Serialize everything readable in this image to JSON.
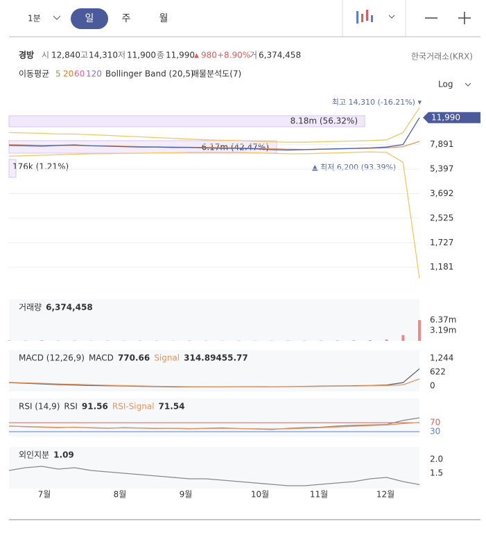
{
  "toolbar": {
    "interval": "1분",
    "tabs": [
      "일",
      "주",
      "월"
    ]
  },
  "quote": {
    "name": "경방",
    "open_label": "시",
    "open": "12,840",
    "high_label": "고",
    "high": "14,310",
    "low_label": "저",
    "low": "11,900",
    "close_label": "종",
    "close": "11,990",
    "change_sign": "▲",
    "change": "980",
    "change_pct": "+8.90%",
    "volume_label": "거",
    "volume": "6,374,458",
    "exchange": "한국거래소(KRX)"
  },
  "indicators": {
    "ma_label": "이동평균",
    "ma_periods": [
      "5",
      "20",
      "60",
      "120"
    ],
    "ma_colors": [
      "#6ab04c",
      "#e67e22",
      "#e0609a",
      "#8e6fd0"
    ],
    "bollinger": "Bollinger Band (20,5)",
    "volume_profile": "매물분석도(7)"
  },
  "scale_mode": "Log",
  "months": [
    "7월",
    "8월",
    "9월",
    "10월",
    "11월",
    "12월"
  ],
  "chart_data": [
    {
      "type": "line",
      "log_scale": true,
      "grid": true,
      "ylim": [
        910,
        16500
      ],
      "yticks": [
        {
          "value": 7891,
          "label": "7,891"
        },
        {
          "value": 5397,
          "label": "5,397"
        },
        {
          "value": 3692,
          "label": "3,692"
        },
        {
          "value": 2525,
          "label": "2,525"
        },
        {
          "value": 1727,
          "label": "1,727"
        },
        {
          "value": 1181,
          "label": "1,181"
        }
      ],
      "current_price": {
        "value": 11990,
        "label": "11,990"
      },
      "annotations": [
        "최고 14,310 (-16.21%) ▾",
        "8.18m (56.32%)",
        "6.17m (42.47%)",
        "176k (1.21%)",
        "▲ 최저 6,200 (93.39%)"
      ],
      "series": [
        {
          "color": "#f0c860",
          "values": [
            9500,
            9450,
            9400,
            9300,
            9300,
            9200,
            9100,
            9000,
            8900,
            8800,
            8700,
            8600,
            8500,
            8450,
            8400,
            8300,
            8250,
            8200,
            8200,
            8250,
            8300,
            8350,
            8400,
            8500,
            9500,
            14000
          ]
        },
        {
          "color": "#f0c860",
          "values": [
            6600,
            6650,
            6700,
            6750,
            6800,
            6850,
            6850,
            6900,
            6900,
            6950,
            6950,
            7000,
            7000,
            7000,
            7000,
            6950,
            6900,
            6850,
            6850,
            6900,
            6950,
            7000,
            7050,
            7000,
            6000,
            1000
          ]
        },
        {
          "color": "#e8955a",
          "values": [
            7900,
            7850,
            7800,
            7800,
            7800,
            7750,
            7750,
            7700,
            7650,
            7620,
            7600,
            7580,
            7550,
            7520,
            7500,
            7450,
            7400,
            7350,
            7330,
            7350,
            7380,
            7420,
            7460,
            7500,
            7650,
            8300
          ]
        },
        {
          "color": "#4a5fb0",
          "values": [
            7800,
            7750,
            7700,
            7800,
            7850,
            7750,
            7700,
            7650,
            7600,
            7600,
            7550,
            7550,
            7500,
            7450,
            7450,
            7400,
            7300,
            7250,
            7300,
            7350,
            7400,
            7450,
            7500,
            7600,
            7900,
            11990
          ]
        }
      ]
    },
    {
      "type": "bar",
      "title": "거래량",
      "value_label": "6,374,458",
      "color": "#f08a8a",
      "ylim": [
        0,
        12740000
      ],
      "yticks": [
        {
          "value": 6370000,
          "label": "6.37m"
        },
        {
          "value": 3190000,
          "label": "3.19m"
        }
      ],
      "values": [
        120000,
        90000,
        150000,
        80000,
        100000,
        70000,
        90000,
        60000,
        80000,
        70000,
        60000,
        90000,
        70000,
        60000,
        80000,
        60000,
        70000,
        90000,
        80000,
        100000,
        120000,
        150000,
        200000,
        400000,
        1800000,
        6374458
      ]
    },
    {
      "type": "line",
      "title": "MACD (12,26,9)",
      "ylim": [
        -249,
        1617
      ],
      "yticks": [
        {
          "value": 1244,
          "label": "1,244"
        },
        {
          "value": 622,
          "label": "622"
        },
        0
      ],
      "legend_values": [
        "770.66",
        "314.89455.77"
      ],
      "series": [
        {
          "name": "MACD",
          "color": "#666666",
          "values": [
            150,
            120,
            90,
            60,
            40,
            20,
            10,
            0,
            -20,
            -30,
            -40,
            -45,
            -40,
            -35,
            -30,
            -30,
            -35,
            -30,
            -20,
            -10,
            0,
            10,
            20,
            40,
            150,
            770.66
          ]
        },
        {
          "name": "Signal",
          "color": "#e8955a",
          "values": [
            160,
            140,
            120,
            90,
            70,
            50,
            30,
            15,
            0,
            -15,
            -25,
            -35,
            -38,
            -38,
            -35,
            -33,
            -33,
            -32,
            -28,
            -20,
            -12,
            -2,
            8,
            20,
            50,
            314.89
          ]
        }
      ]
    },
    {
      "type": "line",
      "title": "RSI (14,9)",
      "ylim": [
        8.5,
        177.7
      ],
      "yticks": [
        70,
        30
      ],
      "tick_colors": [
        "#e05a5a",
        "#5a7ae0"
      ],
      "legend_values": [
        "91.56",
        "71.54"
      ],
      "series": [
        {
          "name": "RSI",
          "color": "#888888",
          "values": [
            55,
            52,
            50,
            48,
            50,
            47,
            45,
            48,
            46,
            44,
            45,
            43,
            45,
            47,
            44,
            42,
            40,
            45,
            48,
            50,
            55,
            58,
            60,
            62,
            80,
            91.56
          ]
        },
        {
          "name": "RSI-Signal",
          "color": "#e8955a",
          "values": [
            54,
            53,
            51,
            49,
            49,
            48,
            46,
            47,
            46,
            45,
            45,
            44,
            44,
            45,
            44,
            43,
            42,
            43,
            45,
            48,
            51,
            54,
            57,
            60,
            66,
            71.54
          ]
        }
      ]
    },
    {
      "type": "line",
      "title": "외인지분",
      "value_label": "1.09",
      "ylim": [
        0.95,
        2.45
      ],
      "yticks": [
        {
          "value": 2,
          "label": "2.0"
        },
        1.5
      ],
      "series": [
        {
          "color": "#888888",
          "values": [
            1.6,
            1.7,
            1.75,
            1.65,
            1.7,
            1.6,
            1.55,
            1.5,
            1.45,
            1.4,
            1.35,
            1.3,
            1.3,
            1.25,
            1.2,
            1.15,
            1.1,
            1.05,
            1.05,
            1.1,
            1.15,
            1.2,
            1.3,
            1.35,
            1.2,
            1.09
          ]
        }
      ]
    }
  ]
}
